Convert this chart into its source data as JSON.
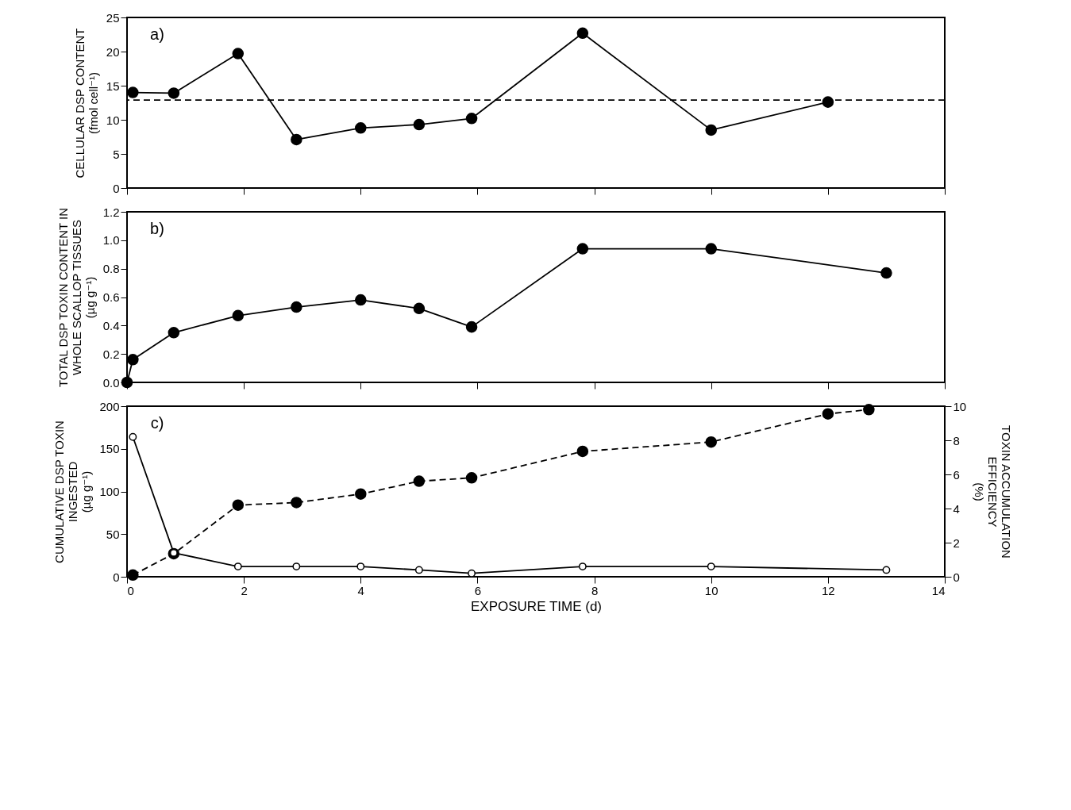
{
  "chart_data": [
    {
      "type": "line",
      "ylabel": "CELLULAR DSP CONTENT (fmol cell⁻¹)",
      "xlim": [
        0,
        14
      ],
      "xticks": [
        0,
        2,
        4,
        6,
        8,
        10,
        12,
        14
      ],
      "ylim": [
        0,
        25
      ],
      "yticks": [
        0,
        5,
        10,
        15,
        20,
        25
      ],
      "tick_labels": "y",
      "marker": "circle",
      "annotations": [
        "a)"
      ],
      "ref_lines": [
        {
          "axis": "y",
          "value": 12.9,
          "line_style": "dashed"
        }
      ],
      "series": [
        {
          "color": "#000000",
          "line_style": "solid",
          "x": [
            0.1,
            0.8,
            1.9,
            2.9,
            4,
            5,
            5.9,
            7.8,
            10,
            12
          ],
          "values": [
            14,
            13.9,
            19.7,
            7.1,
            8.8,
            9.3,
            10.2,
            22.7,
            8.5,
            12.6
          ]
        }
      ]
    },
    {
      "type": "line",
      "ylabel": "TOTAL DSP TOXIN CONTENT IN WHOLE SCALLOP TISSUES (µg g⁻¹)",
      "xlim": [
        0,
        14
      ],
      "xticks": [
        0,
        2,
        4,
        6,
        8,
        10,
        12,
        14
      ],
      "ylim": [
        0,
        1.2
      ],
      "yticks": [
        {
          "value": 0,
          "label": "0.0"
        },
        0.2,
        0.4,
        0.6,
        0.8,
        {
          "value": 1,
          "label": "1.0"
        },
        1.2
      ],
      "tick_labels": "y",
      "marker": "circle",
      "annotations": [
        "b)"
      ],
      "series": [
        {
          "color": "#000000",
          "line_style": "solid",
          "x": [
            0,
            0.1,
            0.8,
            1.9,
            2.9,
            4,
            5,
            5.9,
            7.8,
            10,
            13
          ],
          "values": [
            0,
            0.16,
            0.35,
            0.47,
            0.53,
            0.58,
            0.52,
            0.39,
            0.94,
            0.94,
            0.77
          ]
        }
      ]
    },
    {
      "type": "line",
      "xlabel": "EXPOSURE TIME (d)",
      "ylabel": "CUMULATIVE DSP TOXIN INGESTED (µg g⁻¹)",
      "y2label": "TOXIN ACCUMULATION EFFICIENCY (%)",
      "xlim": [
        0,
        14
      ],
      "xticks": [
        0,
        2,
        4,
        6,
        8,
        10,
        12,
        14
      ],
      "ylim": [
        0,
        200
      ],
      "yticks": [
        0,
        50,
        100,
        150,
        200
      ],
      "y2lim": [
        0,
        10
      ],
      "y2ticks": [
        0,
        2,
        4,
        6,
        8,
        10
      ],
      "marker": "circle",
      "annotations": [
        "c)"
      ],
      "series": [
        {
          "color": "#000000",
          "line_style": "dashed",
          "x": [
            0.1,
            0.8,
            1.9,
            2.9,
            4,
            5,
            5.9,
            7.8,
            10,
            12,
            12.7
          ],
          "values": [
            2,
            27,
            84,
            87,
            97,
            112,
            116,
            147,
            158,
            191,
            196
          ]
        },
        {
          "color": "#000000",
          "line_style": "solid",
          "axis": "y2",
          "x": [
            0.1,
            0.8,
            1.9,
            2.9,
            4,
            5,
            5.9,
            7.8,
            10,
            13
          ],
          "values": [
            8.2,
            1.4,
            0.6,
            0.6,
            0.6,
            0.4,
            0.2,
            0.6,
            0.6,
            0.4
          ]
        }
      ]
    }
  ]
}
